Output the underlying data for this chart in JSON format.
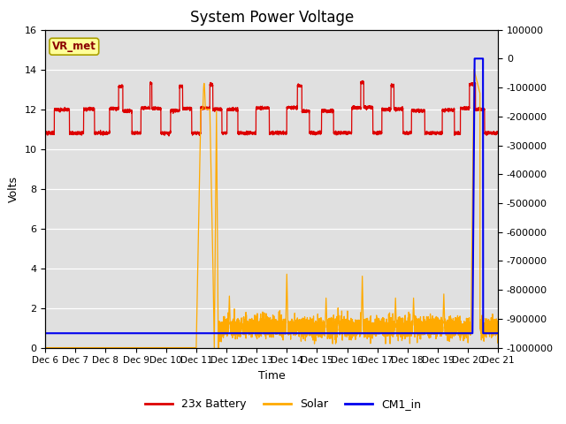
{
  "title": "System Power Voltage",
  "xlabel": "Time",
  "ylabel": "Volts",
  "ylim_left": [
    0,
    16
  ],
  "ylim_right": [
    -1000000,
    100000
  ],
  "yticks_right": [
    100000,
    0,
    -100000,
    -200000,
    -300000,
    -400000,
    -500000,
    -600000,
    -700000,
    -800000,
    -900000,
    -1000000
  ],
  "background_color": "#e0e0e0",
  "legend_labels": [
    "23x Battery",
    "Solar",
    "CM1_in"
  ],
  "vr_met_label": "VR_met",
  "title_fontsize": 12,
  "axis_label_fontsize": 9,
  "tick_fontsize": 8,
  "x_tick_labels": [
    "Dec 6",
    "Dec 7",
    "Dec 8",
    "Dec 9",
    "Dec 10",
    "Dec 11",
    "Dec 12",
    "Dec 13",
    "Dec 14",
    "Dec 15",
    "Dec 16",
    "Dec 17",
    "Dec 18",
    "Dec 19",
    "Dec 20",
    "Dec 21"
  ],
  "color_battery": "#dd0000",
  "color_solar": "#ffaa00",
  "color_cm1": "#0000ee"
}
